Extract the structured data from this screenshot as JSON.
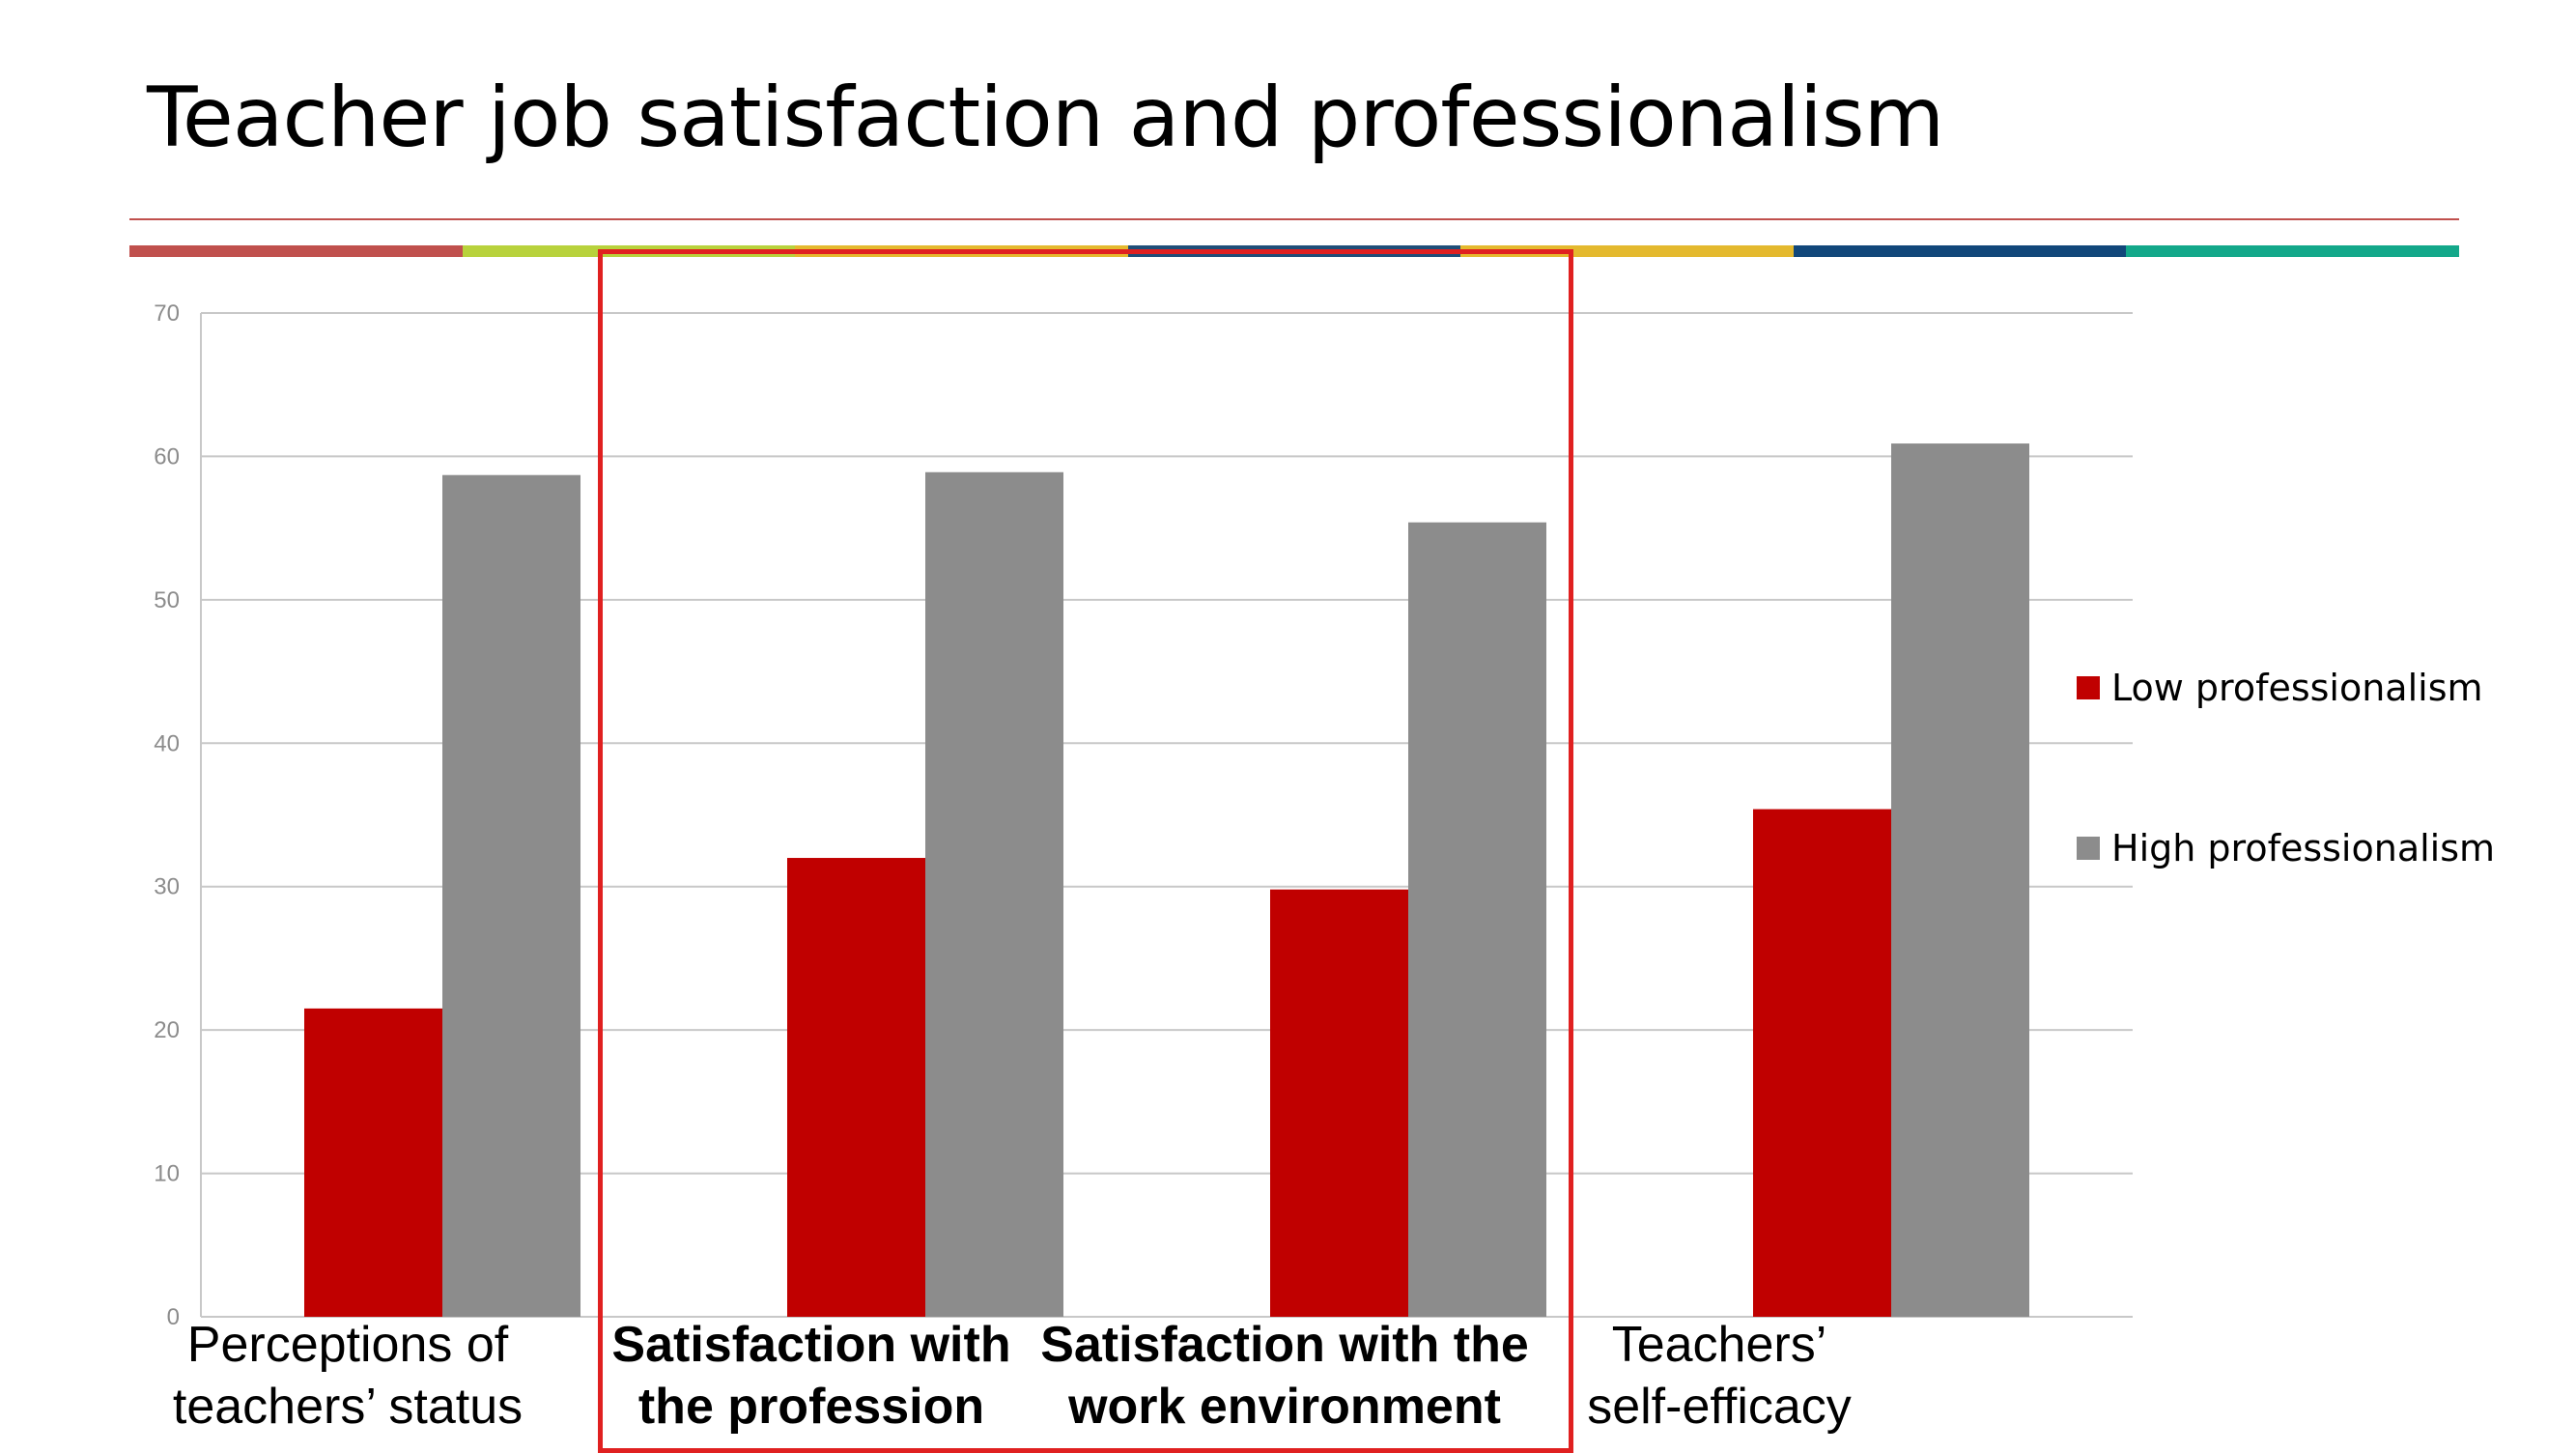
{
  "title": "Teacher job satisfaction and professionalism",
  "colors": {
    "rule": "#c0504d",
    "stripe": [
      "#c0504d",
      "#b8d23c",
      "#e4b92e",
      "#1f4e79",
      "#e4b92e",
      "#11477a",
      "#13a88a"
    ],
    "low": "#c00000",
    "high": "#8c8c8c",
    "grid": "#c8c8c8",
    "highlight": "#e02020"
  },
  "chart_data": {
    "type": "bar",
    "categories": [
      "Perceptions of teachers’ status",
      "Satisfaction with the profession",
      "Satisfaction with the work environment",
      "Teachers’ self-efficacy"
    ],
    "series": [
      {
        "name": "Low professionalism",
        "values": [
          21.5,
          32.0,
          29.8,
          35.4
        ]
      },
      {
        "name": "High professionalism",
        "values": [
          58.7,
          58.9,
          55.4,
          60.9
        ]
      }
    ],
    "ylim": [
      0,
      70
    ],
    "yticks": [
      "0",
      "10",
      "20",
      "30",
      "40",
      "50",
      "60",
      "70"
    ],
    "grid": true,
    "legend": "right"
  },
  "category_labels": [
    {
      "line1": "Perceptions of",
      "line2": "teachers’ status",
      "bold": false
    },
    {
      "line1": "Satisfaction with",
      "line2": "the profession",
      "bold": true
    },
    {
      "line1": "Satisfaction with the",
      "line2": "work environment",
      "bold": true
    },
    {
      "line1": "Teachers’",
      "line2": "self-efficacy",
      "bold": false
    }
  ],
  "highlight": {
    "label": "Categories 2–3 highlighted",
    "categories": [
      1,
      2
    ]
  }
}
